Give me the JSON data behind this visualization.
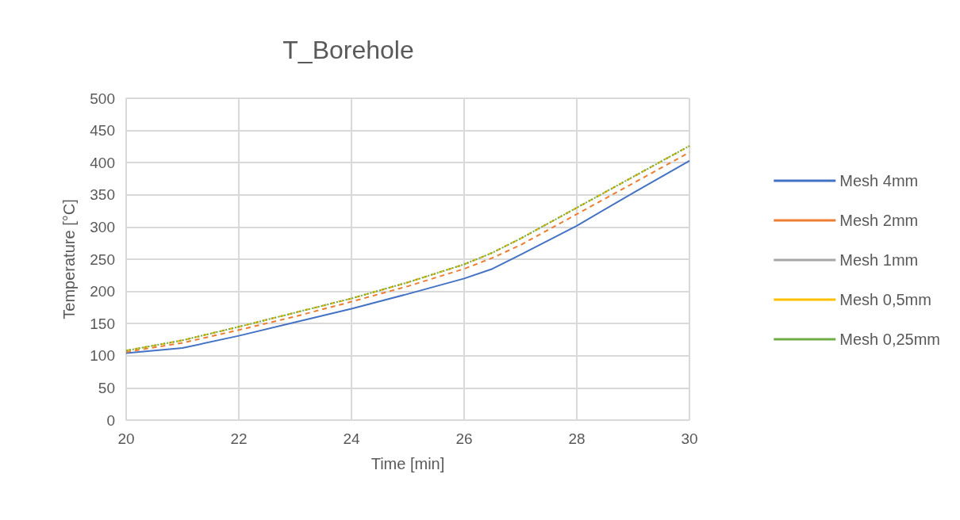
{
  "chart_data": {
    "type": "line",
    "title": "T_Borehole",
    "xlabel": "Time [min]",
    "ylabel": "Temperature [°C]",
    "x": [
      20,
      21,
      22,
      23,
      24,
      25,
      26,
      26.5,
      27,
      28,
      29,
      30
    ],
    "series": [
      {
        "name": "Mesh 4mm",
        "color": "#4472c4",
        "line_style": "solid",
        "values": [
          104,
          112,
          131,
          152,
          173,
          196,
          220,
          235,
          257,
          302,
          353,
          403
        ]
      },
      {
        "name": "Mesh 2mm",
        "color": "#ed7d31",
        "line_style": "dashed",
        "values": [
          106,
          120,
          140,
          161,
          184,
          208,
          235,
          252,
          272,
          320,
          368,
          416
        ]
      },
      {
        "name": "Mesh 1mm",
        "color": "#a5a5a5",
        "line_style": "dashed",
        "values": [
          108,
          124,
          145,
          167,
          189,
          214,
          242,
          260,
          282,
          330,
          378,
          426
        ]
      },
      {
        "name": "Mesh 0,5mm",
        "color": "#ffc000",
        "line_style": "dashed",
        "values": [
          108,
          124,
          145,
          167,
          189,
          214,
          242,
          260,
          282,
          330,
          378,
          426
        ]
      },
      {
        "name": "Mesh 0,25mm",
        "color": "#70ad47",
        "line_style": "dotted",
        "values": [
          108,
          124,
          145,
          167,
          189,
          214,
          242,
          260,
          282,
          330,
          378,
          426
        ]
      }
    ],
    "xlim": [
      20,
      30
    ],
    "xticks": [
      20,
      22,
      24,
      26,
      28,
      30
    ],
    "ylim": [
      0,
      500
    ],
    "yticks": [
      0,
      50,
      100,
      150,
      200,
      250,
      300,
      350,
      400,
      450,
      500
    ],
    "grid": true,
    "legend": "right",
    "marker": "none"
  }
}
